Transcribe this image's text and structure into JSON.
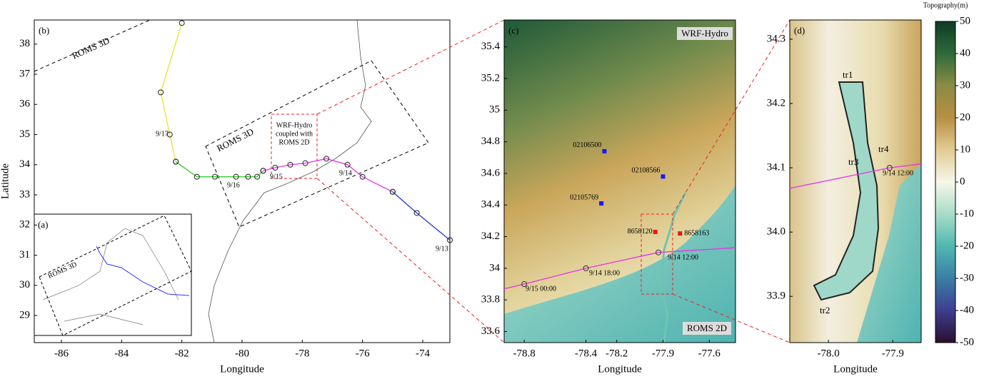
{
  "chart_data": [
    {
      "type": "line",
      "label": "(b)",
      "xlabel": "Longitude",
      "ylabel": "Latitude",
      "xlim": [
        -86.9,
        -73.1
      ],
      "ylim": [
        28.1,
        38.8
      ],
      "xticks": [
        -86,
        -84,
        -82,
        -80,
        -78,
        -76,
        -74
      ],
      "yticks": [
        29,
        30,
        31,
        32,
        33,
        34,
        35,
        36,
        37,
        38
      ],
      "series": [
        {
          "color": "#e6e62e",
          "x": [
            -82,
            -82.7,
            -82.4,
            -82.2
          ],
          "y": [
            38.7,
            36.4,
            35,
            34.1
          ]
        },
        {
          "color": "#33cc33",
          "x": [
            -82.2,
            -81.5,
            -80.9,
            -80.2,
            -79.8,
            -79.5,
            -79.3
          ],
          "y": [
            34.1,
            33.6,
            33.6,
            33.6,
            33.6,
            33.6,
            33.8
          ]
        },
        {
          "color": "#e633e6",
          "x": [
            -79.3,
            -78.9,
            -78.4,
            -77.9,
            -77.2,
            -76.5,
            -76,
            -75
          ],
          "y": [
            33.8,
            33.9,
            34.0,
            34.05,
            34.2,
            34.0,
            33.6,
            33.1
          ]
        },
        {
          "color": "#2233dd",
          "x": [
            -75,
            -74.2,
            -73.1
          ],
          "y": [
            33.1,
            32.4,
            31.5
          ]
        }
      ],
      "annotations": [
        "ROMS 3D",
        "ROMS 3D",
        "WRF-Hydro",
        "coupled with",
        "ROMS 2D",
        "9/17",
        "9/16",
        "9/15",
        "9/14",
        "9/13"
      ],
      "inset": {
        "label": "(a)",
        "annotation": "ROMS 3D"
      }
    },
    {
      "type": "line",
      "label": "(c)",
      "xlabel": "Longitude",
      "xlim": [
        -78.93,
        -77.43
      ],
      "ylim": [
        33.53,
        35.57
      ],
      "xticks": [
        -78.8,
        -78.4,
        -78.2,
        -77.9,
        -77.6
      ],
      "yticks": [
        33.6,
        33.8,
        34,
        34.2,
        34.4,
        34.6,
        34.8,
        35,
        35.2,
        35.4
      ],
      "series": [
        {
          "color": "#e633e6",
          "x": [
            -78.93,
            -78.8,
            -78.4,
            -77.93,
            -77.43
          ],
          "y": [
            33.87,
            33.9,
            34.0,
            34.1,
            34.13
          ]
        }
      ],
      "stations": [
        {
          "label": "02106500",
          "x": -78.28,
          "y": 34.74,
          "color": "#1a1aff"
        },
        {
          "label": "02108566",
          "x": -77.9,
          "y": 34.58,
          "color": "#1a1aff"
        },
        {
          "label": "02105769",
          "x": -78.3,
          "y": 34.41,
          "color": "#1a1aff"
        },
        {
          "label": "8658120",
          "x": -77.95,
          "y": 34.23,
          "color": "#e61a1a"
        },
        {
          "label": "8658163",
          "x": -77.79,
          "y": 34.22,
          "color": "#e61a1a"
        }
      ],
      "annotations": [
        "WRF-Hydro",
        "ROMS 2D",
        "9/14 12:00",
        "9/14 18:00",
        "9/15 00:00"
      ]
    },
    {
      "type": "line",
      "label": "(d)",
      "xlabel": "Longitude",
      "xlim": [
        -78.06,
        -77.856
      ],
      "ylim": [
        33.828,
        34.33
      ],
      "xticks": [
        {
          "value": -78,
          "label": "-78.0"
        },
        -77.9
      ],
      "yticks": [
        {
          "value": 33.9,
          "label": "33.9"
        },
        {
          "value": 34,
          "label": "34.0"
        },
        34.1,
        34.2,
        34.3
      ],
      "series": [
        {
          "color": "#e633e6",
          "x": [
            -78.06,
            -77.905,
            -77.856
          ],
          "y": [
            34.068,
            34.1,
            34.106
          ]
        }
      ],
      "annotations": [
        "tr1",
        "tr2",
        "tr3",
        "tr4",
        "9/14 12:00"
      ]
    },
    {
      "type": "colorbar",
      "title": "Topography(m)",
      "ylim": [
        -50,
        50
      ],
      "yticks": [
        -50,
        -40,
        -30,
        -20,
        -10,
        0,
        10,
        20,
        30,
        40,
        50
      ]
    }
  ]
}
